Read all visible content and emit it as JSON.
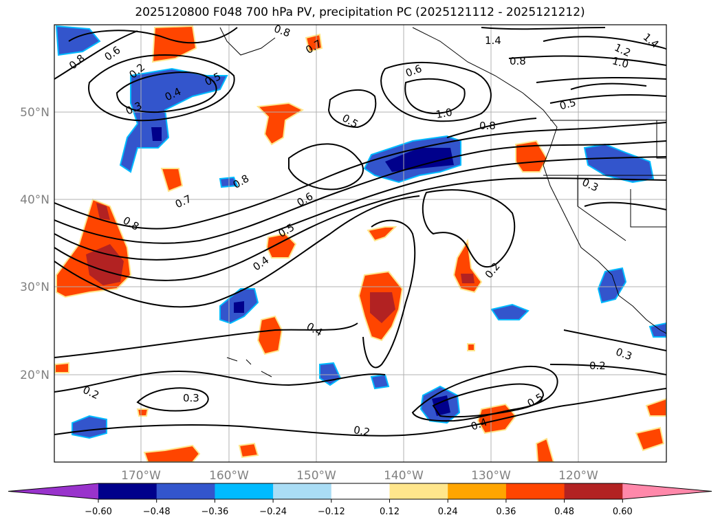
{
  "title": "2025120800 F048 700 hPa PV, precipitation PC (2025121112 - 2025121212)",
  "map": {
    "lat_labels": [
      "50°N",
      "40°N",
      "30°N",
      "20°N"
    ],
    "lon_labels": [
      "170°W",
      "160°W",
      "150°W",
      "140°W",
      "130°W",
      "120°W"
    ],
    "contour_labels": [
      "0.8",
      "0.6",
      "0.2",
      "0.3",
      "0.4",
      "0.5",
      "0.7",
      "1.4",
      "0.8",
      "1.2",
      "1.0",
      "0.6",
      "1.0",
      "0.5",
      "0.8",
      "0.5",
      "0.8",
      "0.3",
      "0.7",
      "0.6",
      "0.8",
      "0.5",
      "0.4",
      "0.2",
      "0.4",
      "0.3",
      "0.2",
      "0.3",
      "0.2",
      "0.5",
      "0.4",
      "0.2",
      "1.4",
      "0.8"
    ]
  },
  "colorbar": {
    "ticks": [
      "−0.60",
      "−0.48",
      "−0.36",
      "−0.24",
      "−0.12",
      "0.12",
      "0.24",
      "0.36",
      "0.48",
      "0.60"
    ],
    "colors": [
      "#9933cc",
      "#00008b",
      "#3355cc",
      "#00bbff",
      "#aaddf5",
      "#ffffff",
      "#ffe68c",
      "#ffa500",
      "#ff4500",
      "#b22222",
      "#ff88aa"
    ]
  }
}
